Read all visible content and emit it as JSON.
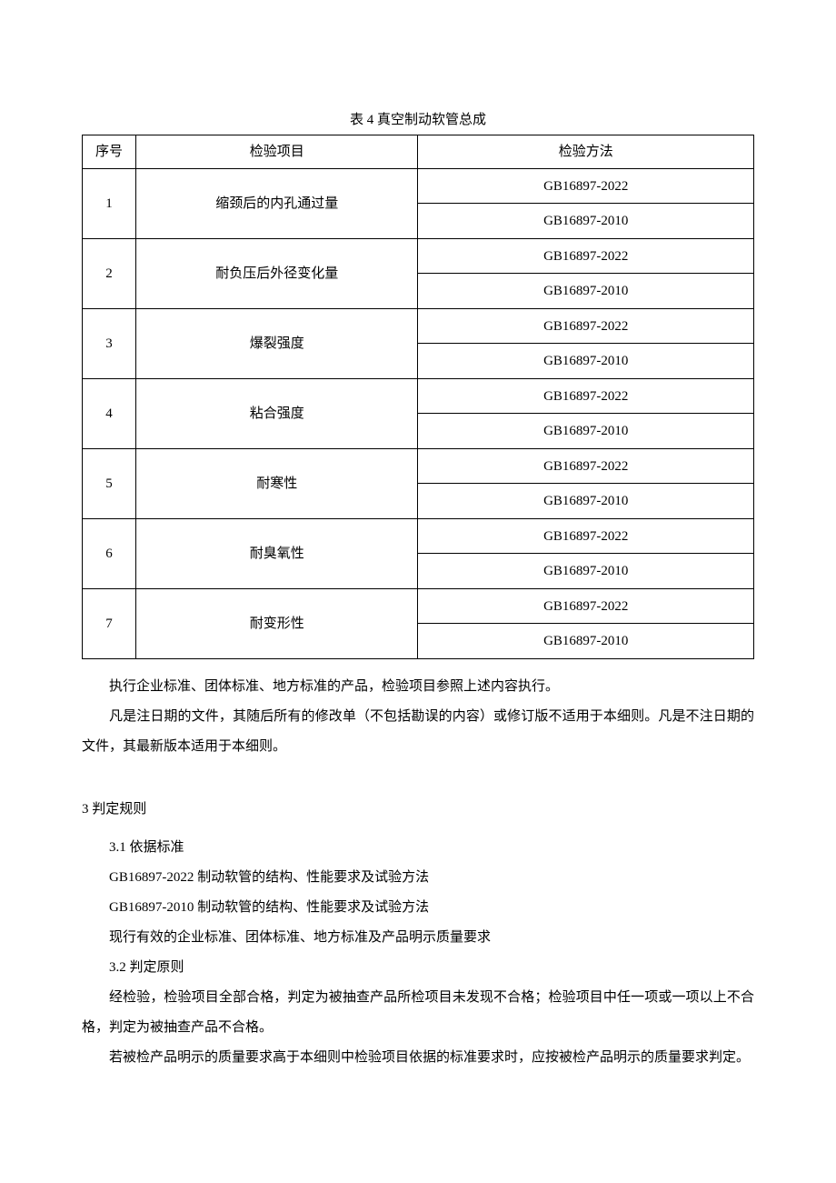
{
  "table": {
    "title": "表 4 真空制动软管总成",
    "headers": {
      "seq": "序号",
      "item": "检验项目",
      "method": "检验方法"
    },
    "rows": [
      {
        "seq": "1",
        "item": "缩颈后的内孔通过量",
        "method1": "GB16897-2022",
        "method2": "GB16897-2010"
      },
      {
        "seq": "2",
        "item": "耐负压后外径变化量",
        "method1": "GB16897-2022",
        "method2": "GB16897-2010"
      },
      {
        "seq": "3",
        "item": "爆裂强度",
        "method1": "GB16897-2022",
        "method2": "GB16897-2010"
      },
      {
        "seq": "4",
        "item": "粘合强度",
        "method1": "GB16897-2022",
        "method2": "GB16897-2010"
      },
      {
        "seq": "5",
        "item": "耐寒性",
        "method1": "GB16897-2022",
        "method2": "GB16897-2010"
      },
      {
        "seq": "6",
        "item": "耐臭氧性",
        "method1": "GB16897-2022",
        "method2": "GB16897-2010"
      },
      {
        "seq": "7",
        "item": "耐变形性",
        "method1": "GB16897-2022",
        "method2": "GB16897-2010"
      }
    ]
  },
  "paragraphs": {
    "p1": "执行企业标准、团体标准、地方标准的产品，检验项目参照上述内容执行。",
    "p2": "凡是注日期的文件，其随后所有的修改单（不包括勘误的内容）或修订版不适用于本细则。凡是不注日期的文件，其最新版本适用于本细则。"
  },
  "section3": {
    "heading": "3 判定规则",
    "sub1": "3.1 依据标准",
    "line1": "GB16897-2022 制动软管的结构、性能要求及试验方法",
    "line2": "GB16897-2010 制动软管的结构、性能要求及试验方法",
    "line3": "现行有效的企业标准、团体标准、地方标准及产品明示质量要求",
    "sub2": "3.2 判定原则",
    "p3": "经检验，检验项目全部合格，判定为被抽查产品所检项目未发现不合格；检验项目中任一项或一项以上不合格，判定为被抽查产品不合格。",
    "p4": "若被检产品明示的质量要求高于本细则中检验项目依据的标准要求时，应按被检产品明示的质量要求判定。"
  }
}
